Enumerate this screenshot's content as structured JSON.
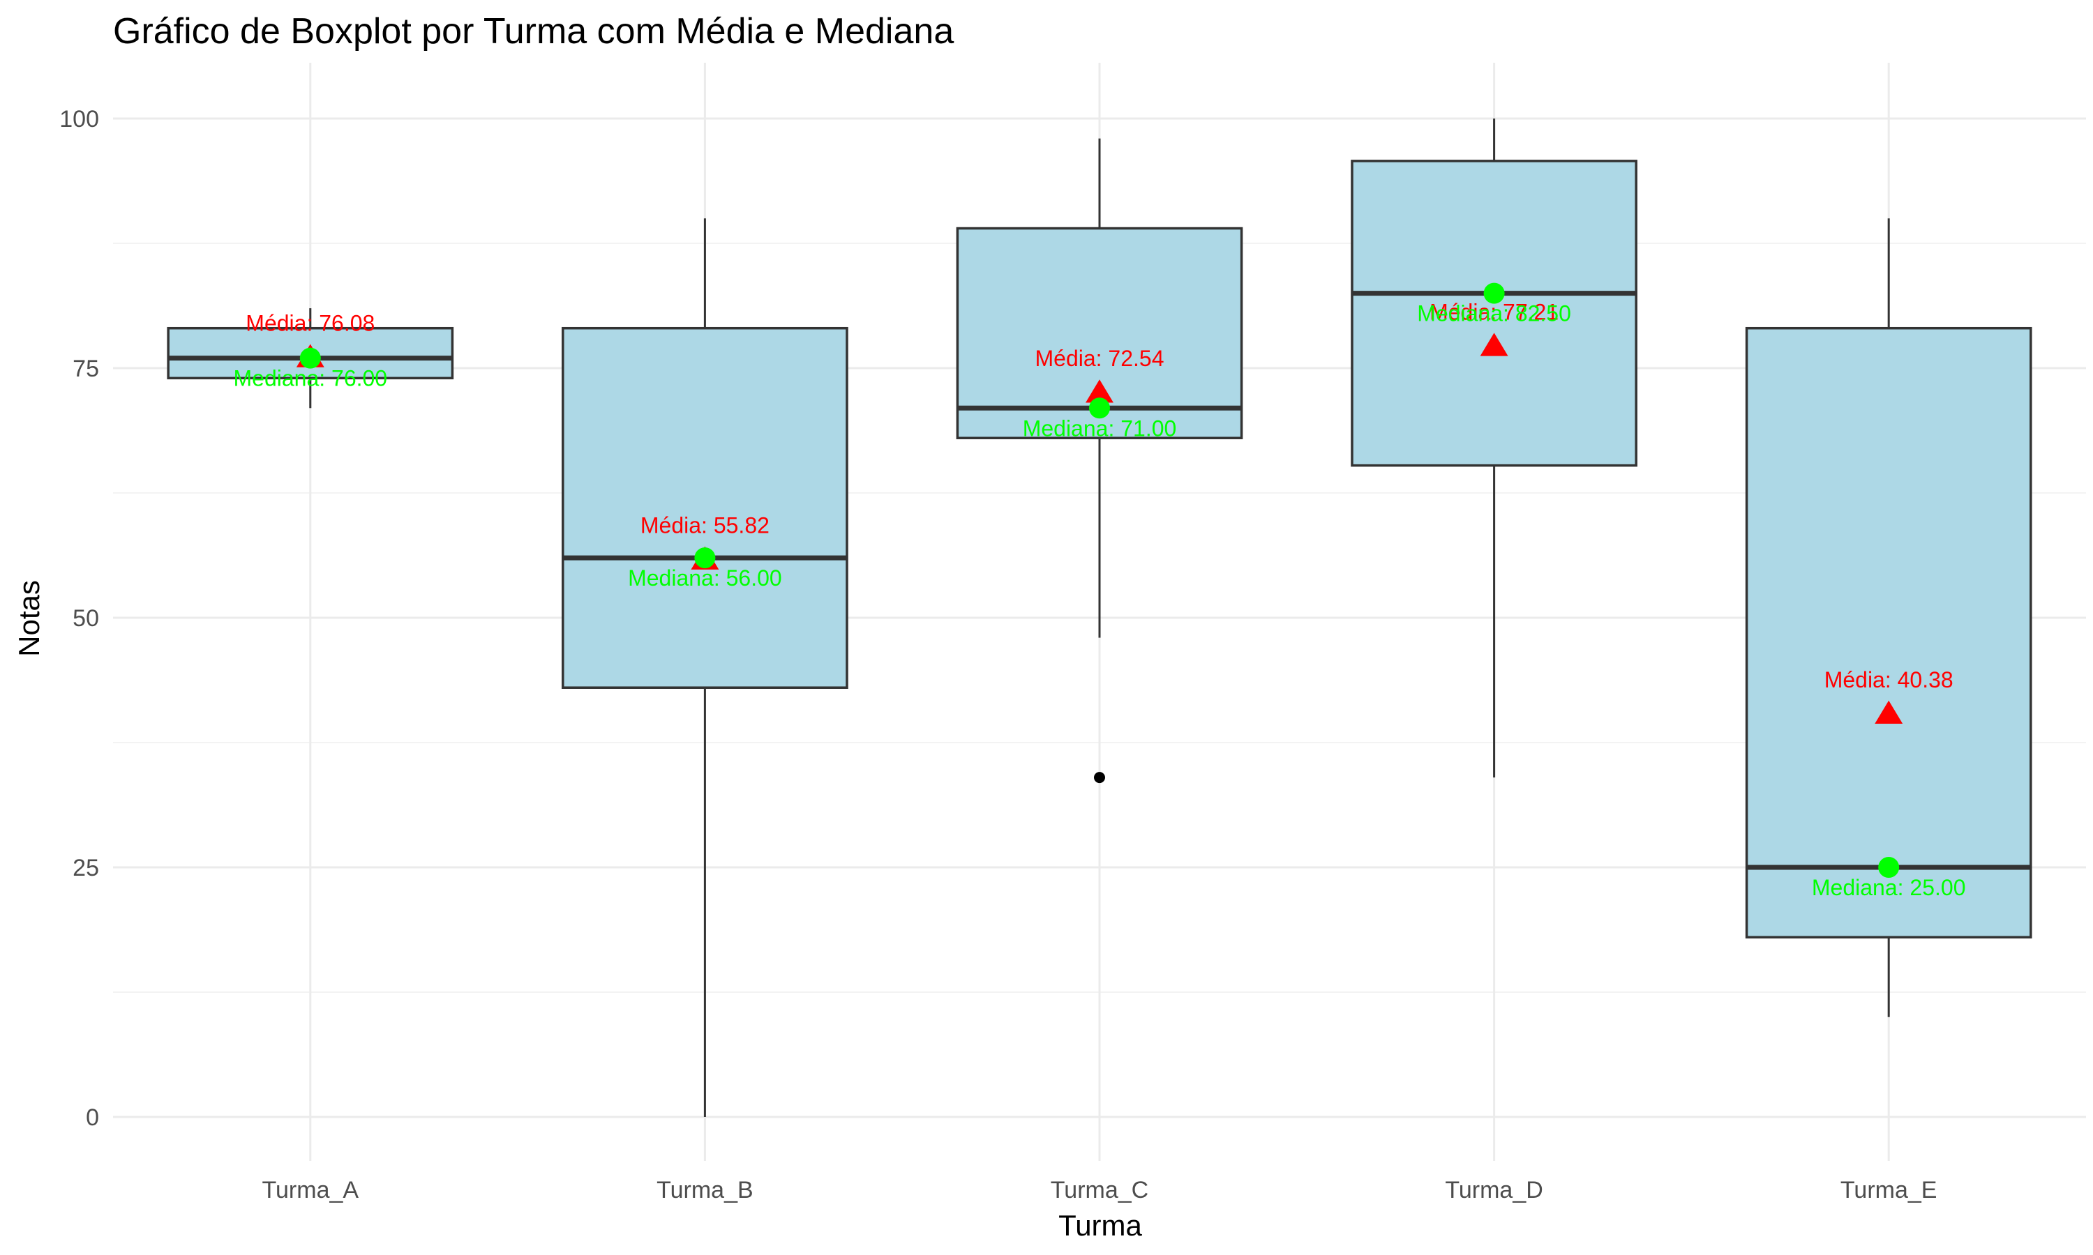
{
  "chart_data": {
    "type": "boxplot",
    "title": "Gráfico de Boxplot por Turma com Média e Mediana",
    "xlabel": "Turma",
    "ylabel": "Notas",
    "ylim": [
      -8,
      105
    ],
    "yticks": [
      0,
      25,
      50,
      75,
      100
    ],
    "y_minor_ticks": [
      12.5,
      37.5,
      62.5,
      87.5
    ],
    "grid": true,
    "categories": [
      "Turma_A",
      "Turma_B",
      "Turma_C",
      "Turma_D",
      "Turma_E"
    ],
    "boxes": [
      {
        "category": "Turma_A",
        "whisker_low": 71,
        "q1": 74,
        "median": 76,
        "q3": 79,
        "whisker_high": 81,
        "mean": 76.08,
        "outliers": [],
        "mean_label": "Média: 76.08",
        "median_label": "Mediana: 76.00"
      },
      {
        "category": "Turma_B",
        "whisker_low": 0,
        "q1": 43,
        "median": 56,
        "q3": 79,
        "whisker_high": 90,
        "mean": 55.82,
        "outliers": [],
        "mean_label": "Média: 55.82",
        "median_label": "Mediana: 56.00"
      },
      {
        "category": "Turma_C",
        "whisker_low": 48,
        "q1": 68,
        "median": 71,
        "q3": 89,
        "whisker_high": 98,
        "mean": 72.54,
        "outliers": [
          34
        ],
        "mean_label": "Média: 72.54",
        "median_label": "Mediana: 71.00"
      },
      {
        "category": "Turma_D",
        "whisker_low": 34,
        "q1": 65.25,
        "median": 82.5,
        "q3": 95.75,
        "whisker_high": 100,
        "mean": 77.21,
        "outliers": [],
        "mean_label": "Média: 77.21",
        "median_label": "Mediana: 82.50"
      },
      {
        "category": "Turma_E",
        "whisker_low": 10,
        "q1": 18,
        "median": 25,
        "q3": 79,
        "whisker_high": 90,
        "mean": 40.38,
        "outliers": [],
        "mean_label": "Média: 40.38",
        "median_label": "Mediana: 25.00"
      }
    ],
    "colors": {
      "box_fill": "#add8e6",
      "box_stroke": "#333333",
      "mean_marker": "#ff0000",
      "median_marker": "#00ff00",
      "grid_major": "#ebebeb",
      "grid_minor": "#f3f3f3",
      "outlier": "#000000"
    }
  }
}
